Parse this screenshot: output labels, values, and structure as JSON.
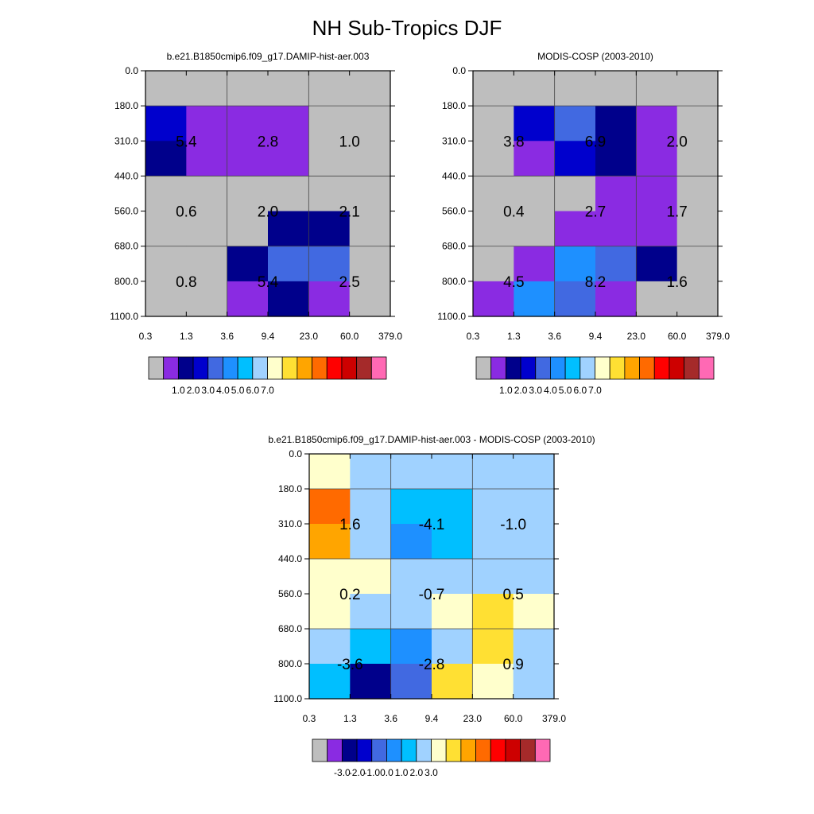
{
  "figure": {
    "title": "NH Sub-Tropics DJF"
  },
  "chart_data": [
    {
      "type": "heatmap",
      "title": "b.e21.B1850cmip6.f09_g17.DAMIP-hist-aer.003",
      "xticks": [
        "0.3",
        "1.3",
        "3.6",
        "9.4",
        "23.0",
        "60.0",
        "379.0"
      ],
      "yticks": [
        "0.0",
        "180.0",
        "310.0",
        "440.0",
        "560.0",
        "680.0",
        "800.0",
        "1100.0"
      ],
      "cells": [
        [
          0,
          0,
          0,
          0,
          0,
          0
        ],
        [
          3,
          1,
          1,
          1,
          0,
          0
        ],
        [
          2,
          1,
          1,
          1,
          0,
          0
        ],
        [
          0,
          0,
          0,
          0,
          0,
          0
        ],
        [
          0,
          0,
          0,
          2,
          2,
          0
        ],
        [
          0,
          0,
          2,
          4,
          4,
          0
        ],
        [
          0,
          0,
          1,
          2,
          1,
          0
        ]
      ],
      "annotations": [
        [
          "",
          "",
          ""
        ],
        [
          "5.4",
          "2.8",
          "1.0"
        ],
        [
          "0.6",
          "2.0",
          "2.1"
        ],
        [
          "0.8",
          "5.4",
          "2.5"
        ]
      ],
      "palette": [
        "#bebebe",
        "#8a2be2",
        "#00008b",
        "#0000cd",
        "#4169e1",
        "#1e90ff",
        "#00bfff",
        "#a0d2ff",
        "#ffffcc",
        "#ffe033",
        "#ffa500",
        "#ff6a00",
        "#ff0000",
        "#cd0000",
        "#a52a2a",
        "#ff69b4"
      ],
      "colorbar_labels": [
        "1.0",
        "2.0",
        "3.0",
        "4.0",
        "5.0",
        "6.0",
        "7.0"
      ]
    },
    {
      "type": "heatmap",
      "title": "MODIS-COSP (2003-2010)",
      "xticks": [
        "0.3",
        "1.3",
        "3.6",
        "9.4",
        "23.0",
        "60.0",
        "379.0"
      ],
      "yticks": [
        "0.0",
        "180.0",
        "310.0",
        "440.0",
        "560.0",
        "680.0",
        "800.0",
        "1100.0"
      ],
      "cells": [
        [
          0,
          0,
          0,
          0,
          0,
          0
        ],
        [
          0,
          3,
          4,
          2,
          1,
          0
        ],
        [
          0,
          1,
          3,
          2,
          1,
          0
        ],
        [
          0,
          0,
          0,
          1,
          1,
          0
        ],
        [
          0,
          0,
          1,
          1,
          1,
          0
        ],
        [
          0,
          1,
          5,
          4,
          2,
          0
        ],
        [
          1,
          5,
          4,
          1,
          0,
          0
        ]
      ],
      "annotations": [
        [
          "",
          "",
          ""
        ],
        [
          "3.8",
          "6.9",
          "2.0"
        ],
        [
          "0.4",
          "2.7",
          "1.7"
        ],
        [
          "4.5",
          "8.2",
          "1.6"
        ]
      ],
      "palette": [
        "#bebebe",
        "#8a2be2",
        "#00008b",
        "#0000cd",
        "#4169e1",
        "#1e90ff",
        "#00bfff",
        "#a0d2ff",
        "#ffffcc",
        "#ffe033",
        "#ffa500",
        "#ff6a00",
        "#ff0000",
        "#cd0000",
        "#a52a2a",
        "#ff69b4"
      ],
      "colorbar_labels": [
        "1.0",
        "2.0",
        "3.0",
        "4.0",
        "5.0",
        "6.0",
        "7.0"
      ]
    },
    {
      "type": "heatmap",
      "title": "b.e21.B1850cmip6.f09_g17.DAMIP-hist-aer.003 - MODIS-COSP (2003-2010)",
      "xticks": [
        "0.3",
        "1.3",
        "3.6",
        "9.4",
        "23.0",
        "60.0",
        "379.0"
      ],
      "yticks": [
        "0.0",
        "180.0",
        "310.0",
        "440.0",
        "560.0",
        "680.0",
        "800.0",
        "1100.0"
      ],
      "cells": [
        [
          8,
          7,
          7,
          7,
          7,
          7
        ],
        [
          11,
          7,
          6,
          6,
          7,
          7
        ],
        [
          10,
          7,
          5,
          6,
          7,
          7
        ],
        [
          8,
          8,
          7,
          7,
          7,
          7
        ],
        [
          8,
          7,
          7,
          8,
          9,
          8
        ],
        [
          7,
          6,
          5,
          7,
          9,
          7
        ],
        [
          6,
          2,
          4,
          9,
          8,
          7
        ]
      ],
      "annotations": [
        [
          "",
          "",
          ""
        ],
        [
          "1.6",
          "-4.1",
          "-1.0"
        ],
        [
          "0.2",
          "-0.7",
          "0.5"
        ],
        [
          "-3.6",
          "-2.8",
          "0.9"
        ]
      ],
      "palette": [
        "#bebebe",
        "#8a2be2",
        "#00008b",
        "#0000cd",
        "#4169e1",
        "#1e90ff",
        "#00bfff",
        "#a0d2ff",
        "#ffffcc",
        "#ffe033",
        "#ffa500",
        "#ff6a00",
        "#ff0000",
        "#cd0000",
        "#a52a2a",
        "#ff69b4"
      ],
      "colorbar_labels": [
        "-3.0",
        "-2.0",
        "-1.0",
        "0.0",
        "1.0",
        "2.0",
        "3.0"
      ]
    }
  ]
}
